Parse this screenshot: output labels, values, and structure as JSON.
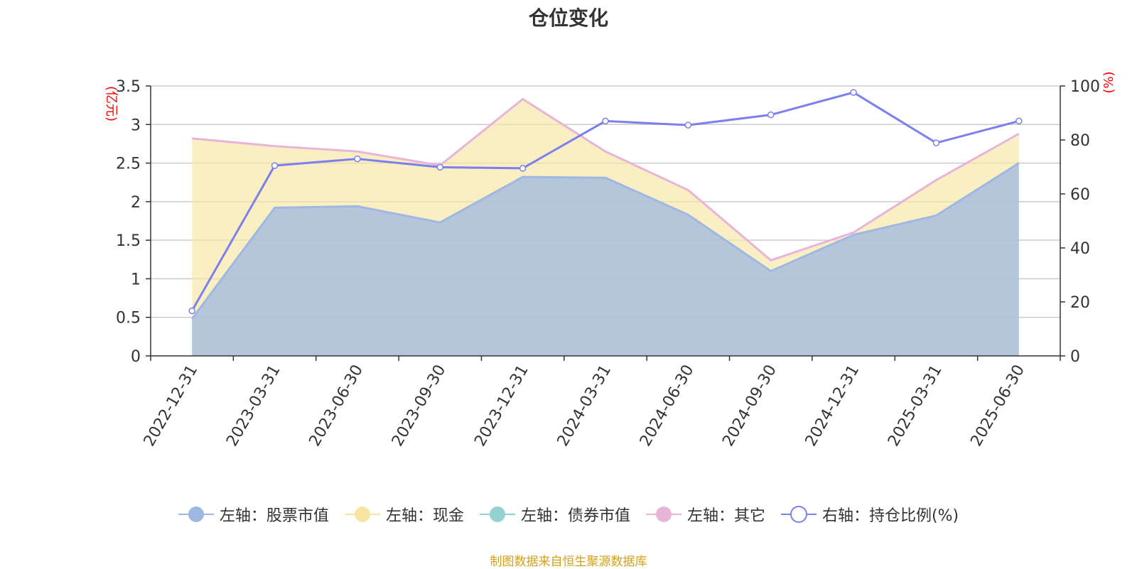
{
  "title": "仓位变化",
  "source": "制图数据来自恒生聚源数据库",
  "colors": {
    "stock": "#9fb8e1",
    "cash": "#f7e6a3",
    "bond": "#94d2d2",
    "other": "#e8b4d8",
    "ratio": "#7b7fef",
    "axis_unit": "#ff0000",
    "source": "#d4a017"
  },
  "chart_data": {
    "type": "area",
    "categories": [
      "2022-12-31",
      "2023-03-31",
      "2023-06-30",
      "2023-09-30",
      "2023-12-31",
      "2024-03-31",
      "2024-06-30",
      "2024-09-30",
      "2024-12-31",
      "2025-03-31",
      "2025-06-30"
    ],
    "left_axis": {
      "unit": "(亿元)",
      "ylim": [
        0,
        3.5
      ],
      "ticks": [
        "0",
        "0.5",
        "1",
        "1.5",
        "2",
        "2.5",
        "3",
        "3.5"
      ]
    },
    "right_axis": {
      "unit": "(%)",
      "ylim": [
        0,
        100
      ],
      "ticks": [
        "0",
        "20",
        "40",
        "60",
        "80",
        "100"
      ]
    },
    "grid": true,
    "legend_position": "bottom",
    "series": [
      {
        "name": "左轴：股票市值",
        "axis": "left",
        "kind": "area",
        "values": [
          0.48,
          1.92,
          1.94,
          1.73,
          2.32,
          2.31,
          1.83,
          1.1,
          1.57,
          1.82,
          2.5
        ]
      },
      {
        "name": "左轴：现金",
        "axis": "left",
        "kind": "area",
        "values": [
          2.81,
          2.71,
          2.64,
          2.46,
          3.32,
          2.64,
          2.14,
          1.23,
          1.58,
          2.27,
          2.86
        ]
      },
      {
        "name": "左轴：债券市值",
        "axis": "left",
        "kind": "area",
        "values": [
          0,
          0,
          0,
          0,
          0,
          0,
          0,
          0,
          0,
          0,
          0
        ]
      },
      {
        "name": "左轴：其它",
        "axis": "left",
        "kind": "line",
        "values": [
          2.82,
          2.72,
          2.65,
          2.47,
          3.33,
          2.65,
          2.15,
          1.24,
          1.6,
          2.28,
          2.88
        ]
      },
      {
        "name": "右轴：持仓比例(%)",
        "axis": "right",
        "kind": "line-markers",
        "values": [
          16.7,
          70.5,
          73.0,
          69.9,
          69.5,
          87.0,
          85.5,
          89.3,
          97.6,
          78.9,
          87.0
        ]
      }
    ]
  }
}
